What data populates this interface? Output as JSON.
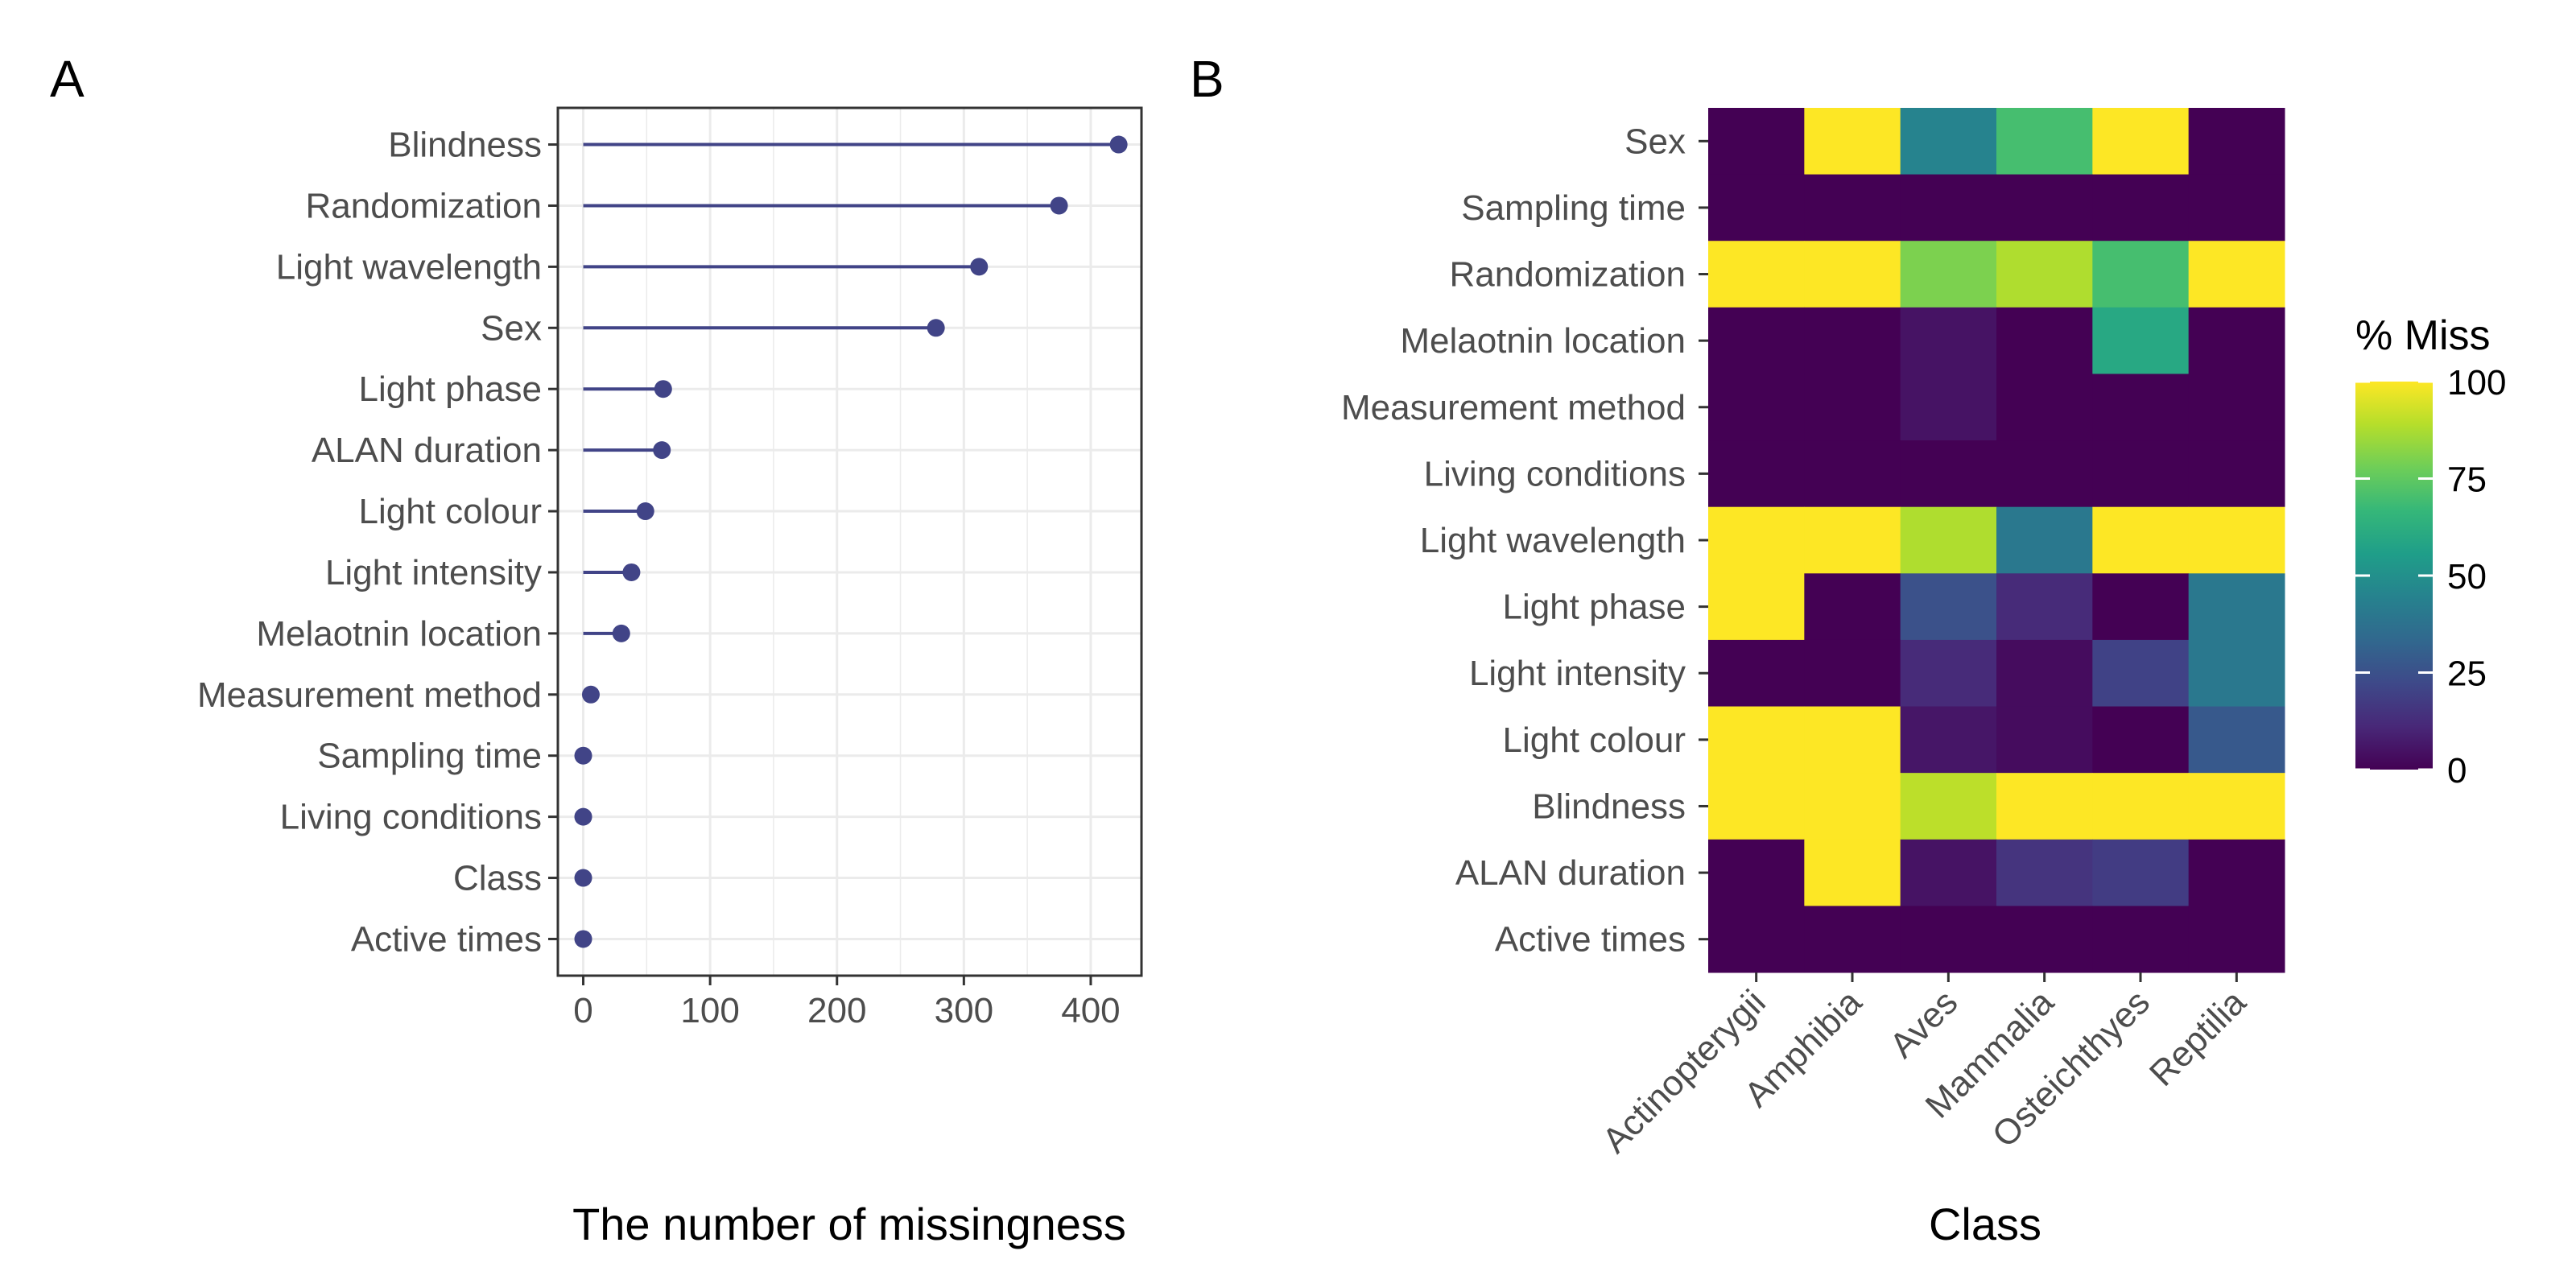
{
  "colors": {
    "lollipop": "#414487",
    "grid": "#ebebeb",
    "panel_border": "#333333",
    "tick_text": "#4d4d4d",
    "viridis": [
      "#440154",
      "#482878",
      "#3e4989",
      "#31688e",
      "#26828e",
      "#1f9e89",
      "#35b779",
      "#6ece58",
      "#b5de2b",
      "#fde725"
    ]
  },
  "chart_data": [
    {
      "type": "lollipop",
      "panel_label": "A",
      "xlabel": "The number of missingness",
      "ylabel": "",
      "xlim": [
        -20,
        440
      ],
      "xticks": [
        "0",
        "100",
        "200",
        "300",
        "400"
      ],
      "grid": true,
      "categories": [
        "Blindness",
        "Randomization",
        "Light wavelength",
        "Sex",
        "Light phase",
        "ALAN duration",
        "Light colour",
        "Light intensity",
        "Melaotnin location",
        "Measurement method",
        "Sampling time",
        "Living conditions",
        "Class",
        "Active times"
      ],
      "values": [
        422,
        375,
        312,
        278,
        63,
        62,
        49,
        38,
        30,
        6,
        0,
        0,
        0,
        0
      ]
    },
    {
      "type": "heatmap",
      "panel_label": "B",
      "xlabel": "Class",
      "ylabel": "",
      "x": [
        "Actinopterygii",
        "Amphibia",
        "Aves",
        "Mammalia",
        "Osteichthyes",
        "Reptilia"
      ],
      "y": [
        "Sex",
        "Sampling time",
        "Randomization",
        "Melaotnin location",
        "Measurement method",
        "Living conditions",
        "Light wavelength",
        "Light phase",
        "Light intensity",
        "Light colour",
        "Blindness",
        "ALAN duration",
        "Active times"
      ],
      "values": [
        [
          0,
          100,
          45,
          70,
          100,
          0
        ],
        [
          0,
          0,
          0,
          0,
          0,
          0
        ],
        [
          100,
          100,
          80,
          88,
          70,
          100
        ],
        [
          0,
          0,
          5,
          0,
          60,
          0
        ],
        [
          0,
          0,
          5,
          0,
          0,
          0
        ],
        [
          0,
          0,
          0,
          0,
          0,
          0
        ],
        [
          100,
          100,
          88,
          40,
          100,
          100
        ],
        [
          100,
          0,
          25,
          12,
          0,
          40
        ],
        [
          0,
          0,
          12,
          3,
          20,
          40
        ],
        [
          100,
          100,
          6,
          3,
          0,
          28
        ],
        [
          100,
          100,
          90,
          100,
          100,
          100
        ],
        [
          0,
          100,
          5,
          15,
          18,
          0
        ],
        [
          0,
          0,
          0,
          0,
          0,
          0
        ]
      ],
      "legend": {
        "title": "% Miss",
        "ticks": [
          "0",
          "25",
          "50",
          "75",
          "100"
        ],
        "range": [
          0,
          100
        ],
        "placement": "right"
      }
    }
  ]
}
